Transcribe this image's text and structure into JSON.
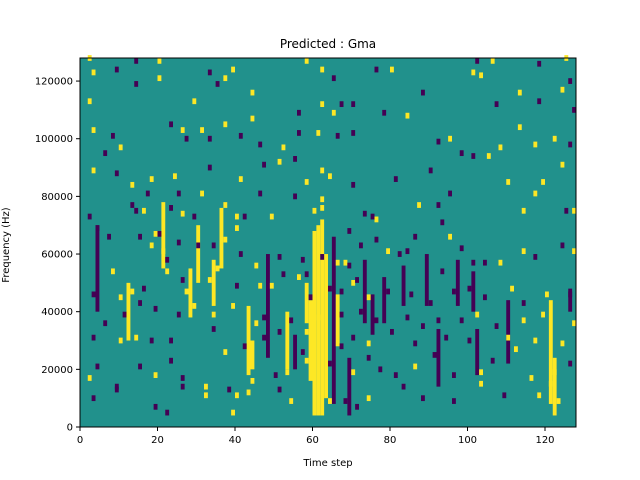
{
  "chart_data": {
    "type": "heatmap",
    "title": "Predicted : Gma",
    "xlabel": "Time step",
    "ylabel": "Frequency (Hz)",
    "xlim": [
      0,
      128
    ],
    "ylim": [
      0,
      128000
    ],
    "xticks": [
      0,
      20,
      40,
      60,
      80,
      100,
      120
    ],
    "xtick_labels": [
      "0",
      "20",
      "40",
      "60",
      "80",
      "100",
      "120"
    ],
    "yticks": [
      0,
      20000,
      40000,
      60000,
      80000,
      100000,
      120000
    ],
    "ytick_labels": [
      "0",
      "20000",
      "40000",
      "60000",
      "80000",
      "100000",
      "120000"
    ],
    "grid": false,
    "colormap": "viridis",
    "value_range": [
      -1,
      1
    ],
    "value_colors": {
      "-1": "#440154",
      "0": "#21918c",
      "1": "#fde725"
    },
    "bin_width_hz": 2000,
    "background_value": 0,
    "cells": [
      [
        2,
        127000,
        1
      ],
      [
        3,
        122000,
        1
      ],
      [
        9,
        123000,
        -1
      ],
      [
        14,
        126000,
        -1
      ],
      [
        20,
        126000,
        1
      ],
      [
        20,
        120000,
        1
      ],
      [
        33,
        122000,
        -1
      ],
      [
        37,
        120000,
        1
      ],
      [
        39,
        123000,
        1
      ],
      [
        58,
        126000,
        1
      ],
      [
        62,
        123000,
        1
      ],
      [
        65,
        120000,
        -1
      ],
      [
        76,
        123000,
        -1
      ],
      [
        80,
        123000,
        1
      ],
      [
        102,
        126000,
        -1
      ],
      [
        103,
        121000,
        1
      ],
      [
        106,
        126000,
        1
      ],
      [
        118,
        125000,
        -1
      ],
      [
        125,
        127000,
        1
      ],
      [
        126,
        119000,
        -1
      ],
      [
        2,
        112000,
        1
      ],
      [
        14,
        118000,
        -1
      ],
      [
        29,
        112000,
        1
      ],
      [
        35,
        118000,
        -1
      ],
      [
        44,
        115000,
        1
      ],
      [
        56,
        108000,
        -1
      ],
      [
        62,
        111000,
        1
      ],
      [
        65,
        108000,
        1
      ],
      [
        67,
        111000,
        -1
      ],
      [
        70,
        111000,
        -1
      ],
      [
        78,
        108000,
        -1
      ],
      [
        88,
        115000,
        -1
      ],
      [
        101,
        122000,
        1
      ],
      [
        107,
        111000,
        -1
      ],
      [
        113,
        115000,
        1
      ],
      [
        118,
        112000,
        -1
      ],
      [
        124,
        116000,
        1
      ],
      [
        127,
        109000,
        -1
      ],
      [
        3,
        102000,
        1
      ],
      [
        8,
        100000,
        -1
      ],
      [
        6,
        94000,
        -1
      ],
      [
        10,
        96000,
        1
      ],
      [
        23,
        104000,
        -1
      ],
      [
        26,
        102000,
        1
      ],
      [
        27,
        99000,
        -1
      ],
      [
        31,
        102000,
        1
      ],
      [
        33,
        99000,
        -1
      ],
      [
        37,
        104000,
        1
      ],
      [
        41,
        100000,
        -1
      ],
      [
        44,
        106000,
        1
      ],
      [
        46,
        97000,
        -1
      ],
      [
        52,
        96000,
        1
      ],
      [
        56,
        101000,
        -1
      ],
      [
        61,
        101000,
        1
      ],
      [
        66,
        100000,
        -1
      ],
      [
        70,
        101000,
        -1
      ],
      [
        84,
        107000,
        1
      ],
      [
        92,
        98000,
        -1
      ],
      [
        95,
        99000,
        1
      ],
      [
        98,
        94000,
        -1
      ],
      [
        108,
        96000,
        1
      ],
      [
        113,
        103000,
        1
      ],
      [
        117,
        97000,
        1
      ],
      [
        122,
        99000,
        1
      ],
      [
        126,
        97000,
        -1
      ],
      [
        3,
        88000,
        1
      ],
      [
        9,
        87000,
        -1
      ],
      [
        13,
        83000,
        1
      ],
      [
        18,
        85000,
        1
      ],
      [
        17,
        80000,
        -1
      ],
      [
        24,
        86000,
        1
      ],
      [
        25,
        80000,
        -1
      ],
      [
        33,
        89000,
        -1
      ],
      [
        37,
        76000,
        1
      ],
      [
        41,
        85000,
        1
      ],
      [
        47,
        90000,
        -1
      ],
      [
        51,
        91000,
        1
      ],
      [
        55,
        92000,
        -1
      ],
      [
        58,
        84000,
        1
      ],
      [
        62,
        88000,
        1
      ],
      [
        64,
        86000,
        1
      ],
      [
        70,
        83000,
        -1
      ],
      [
        81,
        85000,
        -1
      ],
      [
        90,
        88000,
        -1
      ],
      [
        101,
        93000,
        -1
      ],
      [
        105,
        93000,
        1
      ],
      [
        110,
        84000,
        1
      ],
      [
        119,
        84000,
        1
      ],
      [
        124,
        90000,
        1
      ],
      [
        2,
        72000,
        -1
      ],
      [
        4,
        68000,
        -1
      ],
      [
        13,
        76000,
        -1
      ],
      [
        14,
        74000,
        -1
      ],
      [
        16,
        74000,
        1
      ],
      [
        20,
        66000,
        -1
      ],
      [
        23,
        75000,
        -1
      ],
      [
        26,
        73000,
        1
      ],
      [
        29,
        72000,
        -1
      ],
      [
        31,
        80000,
        1
      ],
      [
        40,
        72000,
        1
      ],
      [
        42,
        72000,
        -1
      ],
      [
        46,
        80000,
        -1
      ],
      [
        49,
        72000,
        1
      ],
      [
        55,
        79000,
        -1
      ],
      [
        60,
        74000,
        1
      ],
      [
        62,
        75000,
        1
      ],
      [
        62,
        78000,
        1
      ],
      [
        69,
        67000,
        -1
      ],
      [
        73,
        73000,
        -1
      ],
      [
        75,
        72000,
        -1
      ],
      [
        76,
        71000,
        1
      ],
      [
        87,
        76000,
        1
      ],
      [
        92,
        76000,
        -1
      ],
      [
        93,
        70000,
        -1
      ],
      [
        95,
        80000,
        -1
      ],
      [
        114,
        74000,
        1
      ],
      [
        117,
        80000,
        1
      ],
      [
        125,
        74000,
        -1
      ],
      [
        127,
        74000,
        1
      ],
      [
        7,
        65000,
        -1
      ],
      [
        15,
        65000,
        -1
      ],
      [
        18,
        62000,
        1
      ],
      [
        19,
        66000,
        1
      ],
      [
        21,
        60000,
        1
      ],
      [
        22,
        57000,
        -1
      ],
      [
        25,
        63000,
        -1
      ],
      [
        30,
        62000,
        -1
      ],
      [
        34,
        62000,
        -1
      ],
      [
        37,
        64000,
        1
      ],
      [
        40,
        68000,
        1
      ],
      [
        41,
        59000,
        -1
      ],
      [
        45,
        55000,
        1
      ],
      [
        51,
        58000,
        -1
      ],
      [
        57,
        57000,
        -1
      ],
      [
        58,
        52000,
        -1
      ],
      [
        62,
        58000,
        -1
      ],
      [
        66,
        56000,
        1
      ],
      [
        68,
        56000,
        1
      ],
      [
        69,
        55000,
        -1
      ],
      [
        72,
        62000,
        -1
      ],
      [
        76,
        64000,
        -1
      ],
      [
        79,
        60000,
        1
      ],
      [
        82,
        59000,
        -1
      ],
      [
        84,
        60000,
        -1
      ],
      [
        86,
        65000,
        -1
      ],
      [
        93,
        53000,
        -1
      ],
      [
        95,
        65000,
        1
      ],
      [
        98,
        61000,
        -1
      ],
      [
        101,
        56000,
        -1
      ],
      [
        104,
        56000,
        -1
      ],
      [
        108,
        56000,
        1
      ],
      [
        114,
        60000,
        1
      ],
      [
        117,
        58000,
        -1
      ],
      [
        124,
        62000,
        -1
      ],
      [
        127,
        60000,
        1
      ],
      [
        3,
        45000,
        -1
      ],
      [
        8,
        53000,
        1
      ],
      [
        13,
        46000,
        1
      ],
      [
        16,
        47000,
        -1
      ],
      [
        22,
        53000,
        1
      ],
      [
        26,
        50000,
        -1
      ],
      [
        27,
        46000,
        1
      ],
      [
        33,
        50000,
        1
      ],
      [
        35,
        54000,
        1
      ],
      [
        40,
        48000,
        -1
      ],
      [
        46,
        48000,
        1
      ],
      [
        49,
        48000,
        1
      ],
      [
        52,
        52000,
        -1
      ],
      [
        56,
        51000,
        1
      ],
      [
        59,
        44000,
        -1
      ],
      [
        64,
        47000,
        -1
      ],
      [
        67,
        46000,
        -1
      ],
      [
        70,
        49000,
        1
      ],
      [
        71,
        50000,
        -1
      ],
      [
        74,
        44000,
        1
      ],
      [
        79,
        46000,
        -1
      ],
      [
        85,
        45000,
        -1
      ],
      [
        90,
        42000,
        -1
      ],
      [
        96,
        46000,
        -1
      ],
      [
        100,
        47000,
        -1
      ],
      [
        104,
        44000,
        -1
      ],
      [
        111,
        47000,
        1
      ],
      [
        114,
        42000,
        -1
      ],
      [
        120,
        45000,
        1
      ],
      [
        126,
        45000,
        -1
      ],
      [
        6,
        35000,
        -1
      ],
      [
        10,
        44000,
        1
      ],
      [
        11,
        38000,
        -1
      ],
      [
        15,
        42000,
        -1
      ],
      [
        19,
        40000,
        -1
      ],
      [
        25,
        38000,
        -1
      ],
      [
        29,
        41000,
        1
      ],
      [
        34,
        38000,
        1
      ],
      [
        39,
        41000,
        1
      ],
      [
        45,
        35000,
        1
      ],
      [
        47,
        37000,
        -1
      ],
      [
        54,
        36000,
        -1
      ],
      [
        61,
        37000,
        1
      ],
      [
        67,
        38000,
        -1
      ],
      [
        72,
        39000,
        -1
      ],
      [
        76,
        36000,
        -1
      ],
      [
        84,
        37000,
        -1
      ],
      [
        88,
        34000,
        -1
      ],
      [
        92,
        36000,
        -1
      ],
      [
        98,
        36000,
        -1
      ],
      [
        102,
        38000,
        1
      ],
      [
        107,
        34000,
        -1
      ],
      [
        114,
        36000,
        1
      ],
      [
        119,
        38000,
        1
      ],
      [
        127,
        35000,
        1
      ],
      [
        3,
        30000,
        -1
      ],
      [
        10,
        29000,
        1
      ],
      [
        14,
        30000,
        1
      ],
      [
        18,
        29000,
        -1
      ],
      [
        23,
        29000,
        -1
      ],
      [
        34,
        33000,
        -1
      ],
      [
        37,
        25000,
        1
      ],
      [
        42,
        27000,
        -1
      ],
      [
        47,
        30000,
        -1
      ],
      [
        51,
        32000,
        -1
      ],
      [
        57,
        25000,
        -1
      ],
      [
        58,
        32000,
        1
      ],
      [
        67,
        27000,
        -1
      ],
      [
        70,
        30000,
        -1
      ],
      [
        74,
        28000,
        1
      ],
      [
        80,
        32000,
        -1
      ],
      [
        86,
        28000,
        -1
      ],
      [
        94,
        30000,
        -1
      ],
      [
        100,
        29000,
        -1
      ],
      [
        110,
        30000,
        1
      ],
      [
        112,
        26000,
        1
      ],
      [
        117,
        29000,
        1
      ],
      [
        124,
        28000,
        1
      ],
      [
        2,
        16000,
        1
      ],
      [
        4,
        20000,
        -1
      ],
      [
        9,
        13000,
        -1
      ],
      [
        15,
        20000,
        -1
      ],
      [
        19,
        17000,
        1
      ],
      [
        23,
        22000,
        -1
      ],
      [
        26,
        16000,
        -1
      ],
      [
        32,
        13000,
        1
      ],
      [
        38,
        12000,
        -1
      ],
      [
        44,
        15000,
        1
      ],
      [
        50,
        17000,
        -1
      ],
      [
        53,
        18000,
        1
      ],
      [
        58,
        22000,
        1
      ],
      [
        64,
        21000,
        -1
      ],
      [
        70,
        18000,
        1
      ],
      [
        74,
        23000,
        -1
      ],
      [
        77,
        19000,
        -1
      ],
      [
        81,
        17000,
        -1
      ],
      [
        86,
        20000,
        1
      ],
      [
        91,
        24000,
        -1
      ],
      [
        96,
        17000,
        -1
      ],
      [
        103,
        18000,
        1
      ],
      [
        106,
        22000,
        -1
      ],
      [
        116,
        16000,
        1
      ],
      [
        122,
        18000,
        1
      ],
      [
        126,
        21000,
        -1
      ],
      [
        3,
        9000,
        -1
      ],
      [
        9,
        12000,
        -1
      ],
      [
        19,
        6000,
        -1
      ],
      [
        22,
        4000,
        -1
      ],
      [
        26,
        13000,
        -1
      ],
      [
        32,
        10000,
        1
      ],
      [
        39,
        4000,
        1
      ],
      [
        40,
        10000,
        1
      ],
      [
        43,
        11000,
        1
      ],
      [
        51,
        12000,
        -1
      ],
      [
        54,
        8000,
        1
      ],
      [
        64,
        8000,
        1
      ],
      [
        68,
        8000,
        -1
      ],
      [
        71,
        6000,
        -1
      ],
      [
        74,
        9000,
        1
      ],
      [
        83,
        13000,
        -1
      ],
      [
        88,
        9000,
        -1
      ],
      [
        96,
        8000,
        -1
      ],
      [
        103,
        14000,
        1
      ],
      [
        109,
        10000,
        -1
      ],
      [
        118,
        10000,
        1
      ],
      [
        121,
        14000,
        1
      ],
      [
        123,
        8000,
        1
      ]
    ],
    "vertical_bands": [
      {
        "x": 4,
        "y_from": 40000,
        "y_to": 70000,
        "value": -1
      },
      {
        "x": 12,
        "y_from": 30000,
        "y_to": 50000,
        "value": 1
      },
      {
        "x": 21,
        "y_from": 55000,
        "y_to": 78000,
        "value": 1
      },
      {
        "x": 28,
        "y_from": 38000,
        "y_to": 55000,
        "value": 1
      },
      {
        "x": 30,
        "y_from": 50000,
        "y_to": 70000,
        "value": 1
      },
      {
        "x": 34,
        "y_from": 42000,
        "y_to": 58000,
        "value": 1
      },
      {
        "x": 36,
        "y_from": 55000,
        "y_to": 76000,
        "value": 1
      },
      {
        "x": 43,
        "y_from": 18000,
        "y_to": 42000,
        "value": 1
      },
      {
        "x": 44,
        "y_from": 20000,
        "y_to": 30000,
        "value": 1
      },
      {
        "x": 48,
        "y_from": 24000,
        "y_to": 60000,
        "value": -1
      },
      {
        "x": 53,
        "y_from": 20000,
        "y_to": 40000,
        "value": 1
      },
      {
        "x": 55,
        "y_from": 20000,
        "y_to": 32000,
        "value": -1
      },
      {
        "x": 58,
        "y_from": 36000,
        "y_to": 50000,
        "value": 1
      },
      {
        "x": 59,
        "y_from": 16000,
        "y_to": 44000,
        "value": 1
      },
      {
        "x": 60,
        "y_from": 4000,
        "y_to": 68000,
        "value": 1
      },
      {
        "x": 61,
        "y_from": 4000,
        "y_to": 70000,
        "value": 1
      },
      {
        "x": 62,
        "y_from": 4000,
        "y_to": 72000,
        "value": 1
      },
      {
        "x": 63,
        "y_from": 10000,
        "y_to": 60000,
        "value": 1
      },
      {
        "x": 65,
        "y_from": 8000,
        "y_to": 66000,
        "value": -1
      },
      {
        "x": 66,
        "y_from": 28000,
        "y_to": 46000,
        "value": 1
      },
      {
        "x": 69,
        "y_from": 4000,
        "y_to": 24000,
        "value": -1
      },
      {
        "x": 73,
        "y_from": 36000,
        "y_to": 58000,
        "value": -1
      },
      {
        "x": 75,
        "y_from": 32000,
        "y_to": 46000,
        "value": -1
      },
      {
        "x": 78,
        "y_from": 36000,
        "y_to": 52000,
        "value": -1
      },
      {
        "x": 83,
        "y_from": 42000,
        "y_to": 56000,
        "value": -1
      },
      {
        "x": 89,
        "y_from": 42000,
        "y_to": 60000,
        "value": -1
      },
      {
        "x": 92,
        "y_from": 14000,
        "y_to": 34000,
        "value": -1
      },
      {
        "x": 97,
        "y_from": 42000,
        "y_to": 58000,
        "value": -1
      },
      {
        "x": 101,
        "y_from": 40000,
        "y_to": 54000,
        "value": -1
      },
      {
        "x": 102,
        "y_from": 18000,
        "y_to": 34000,
        "value": -1
      },
      {
        "x": 110,
        "y_from": 22000,
        "y_to": 44000,
        "value": -1
      },
      {
        "x": 121,
        "y_from": 8000,
        "y_to": 44000,
        "value": 1
      },
      {
        "x": 122,
        "y_from": 4000,
        "y_to": 24000,
        "value": 1
      },
      {
        "x": 126,
        "y_from": 40000,
        "y_to": 48000,
        "value": -1
      }
    ]
  }
}
